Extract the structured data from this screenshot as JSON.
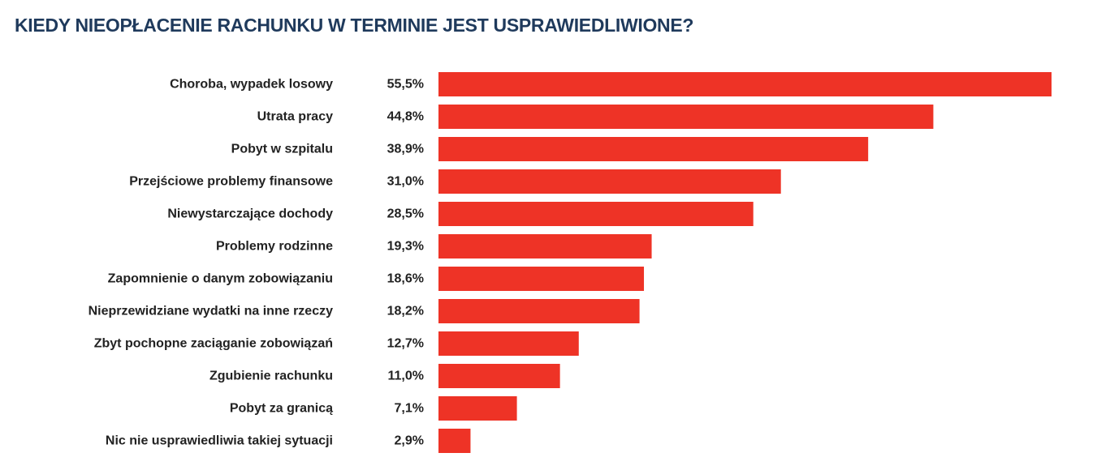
{
  "chart_data": {
    "type": "bar",
    "orientation": "horizontal",
    "title": "KIEDY NIEOPŁACENIE RACHUNKU W TERMINIE JEST USPRAWIEDLIWIONE?",
    "categories": [
      "Choroba, wypadek losowy",
      "Utrata pracy",
      "Pobyt w szpitalu",
      "Przejściowe problemy finansowe",
      "Niewystarczające dochody",
      "Problemy rodzinne",
      "Zapomnienie o danym zobowiązaniu",
      "Nieprzewidziane wydatki na inne rzeczy",
      "Zbyt pochopne zaciąganie zobowiązań",
      "Zgubienie rachunku",
      "Pobyt za granicą",
      "Nic nie usprawiedliwia takiej sytuacji"
    ],
    "values": [
      55.5,
      44.8,
      38.9,
      31.0,
      28.5,
      19.3,
      18.6,
      18.2,
      12.7,
      11.0,
      7.1,
      2.9
    ],
    "value_labels": [
      "55,5%",
      "44,8%",
      "38,9%",
      "31,0%",
      "28,5%",
      "19,3%",
      "18,6%",
      "18,2%",
      "12,7%",
      "11,0%",
      "7,1%",
      "2,9%"
    ],
    "unit": "%",
    "xlim": [
      0,
      55.5
    ],
    "xlabel": "",
    "ylabel": "",
    "grid": false,
    "legend": "none",
    "bar_color": "#ee3326",
    "title_color": "#1f3a5c",
    "text_color": "#222222"
  }
}
